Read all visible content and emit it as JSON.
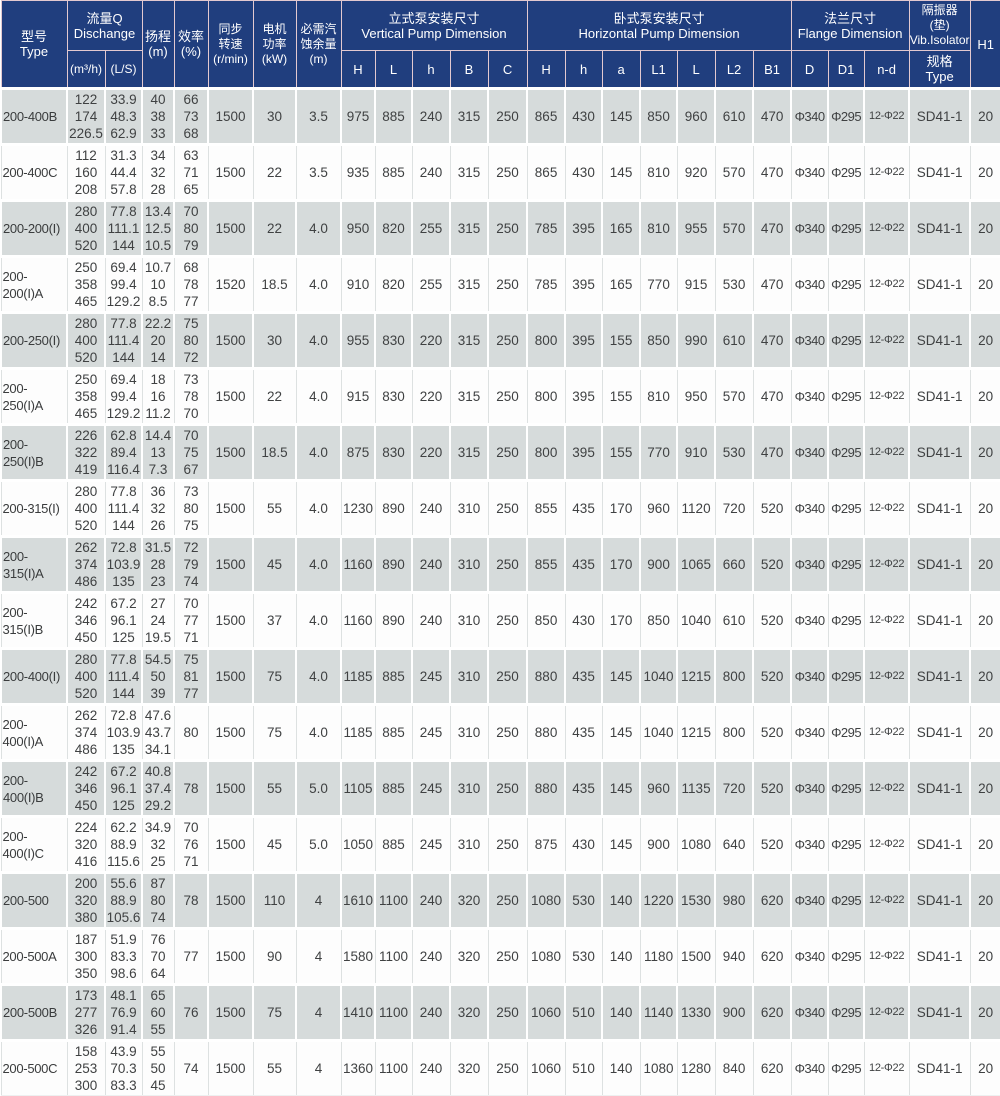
{
  "colors": {
    "header_bg": "#203e7e",
    "header_text": "#ffffff",
    "row_gray": "#d6dbdb",
    "row_white": "#fdfdfd",
    "data_text": "#3f4142"
  },
  "table": {
    "header": {
      "type": "型号\nType",
      "discharge": "流量Q\nDischange",
      "m3h": "(m³/h)",
      "ls": "(L/S)",
      "head": "扬程\n(m)",
      "eff": "效率\n(%)",
      "speed": "同步\n转速\n(r/min)",
      "power": "电机\n功率\n(kW)",
      "npsh": "必需汽\n蚀余量\n(m)",
      "vertical": "立式泵安装尺寸\nVertical Pump Dimension",
      "horizontal": "卧式泵安装尺寸\nHorizontal Pump Dimension",
      "flange": "法兰尺寸\nFlange Dimension",
      "vib": "隔振器\n(垫)\nVib.Isolator",
      "vib_sub": "规格\nType",
      "h1": "H1",
      "v_cols": [
        "H",
        "L",
        "h",
        "B",
        "C"
      ],
      "hz_cols": [
        "H",
        "h",
        "a",
        "L1",
        "L",
        "L2",
        "B1"
      ],
      "flange_cols": [
        "D",
        "D1",
        "n-d"
      ]
    },
    "rows": [
      {
        "type": "200-400B",
        "m3h": "122\n174\n226.5",
        "ls": "33.9\n48.3\n62.9",
        "head": "40\n38\n33",
        "eff": "66\n73\n68",
        "speed": "1500",
        "power": "30",
        "npsh": "3.5",
        "v": [
          "975",
          "885",
          "240",
          "315",
          "250"
        ],
        "hz": [
          "865",
          "430",
          "145",
          "850",
          "960",
          "610",
          "470"
        ],
        "flange": [
          "Φ340",
          "Φ295",
          "12-Φ22"
        ],
        "vib": "SD41-1",
        "h1": "20"
      },
      {
        "type": "200-400C",
        "m3h": "112\n160\n208",
        "ls": "31.3\n44.4\n57.8",
        "head": "34\n32\n28",
        "eff": "63\n71\n65",
        "speed": "1500",
        "power": "22",
        "npsh": "3.5",
        "v": [
          "935",
          "885",
          "240",
          "315",
          "250"
        ],
        "hz": [
          "865",
          "430",
          "145",
          "810",
          "920",
          "570",
          "470"
        ],
        "flange": [
          "Φ340",
          "Φ295",
          "12-Φ22"
        ],
        "vib": "SD41-1",
        "h1": "20"
      },
      {
        "type": "200-200(I)",
        "m3h": "280\n400\n520",
        "ls": "77.8\n111.1\n144",
        "head": "13.4\n12.5\n10.5",
        "eff": "70\n80\n79",
        "speed": "1500",
        "power": "22",
        "npsh": "4.0",
        "v": [
          "950",
          "820",
          "255",
          "315",
          "250"
        ],
        "hz": [
          "785",
          "395",
          "165",
          "810",
          "955",
          "570",
          "470"
        ],
        "flange": [
          "Φ340",
          "Φ295",
          "12-Φ22"
        ],
        "vib": "SD41-1",
        "h1": "20"
      },
      {
        "type": "200-200(I)A",
        "m3h": "250\n358\n465",
        "ls": "69.4\n99.4\n129.2",
        "head": "10.7\n10\n8.5",
        "eff": "68\n78\n77",
        "speed": "1520",
        "power": "18.5",
        "npsh": "4.0",
        "v": [
          "910",
          "820",
          "255",
          "315",
          "250"
        ],
        "hz": [
          "785",
          "395",
          "165",
          "770",
          "915",
          "530",
          "470"
        ],
        "flange": [
          "Φ340",
          "Φ295",
          "12-Φ22"
        ],
        "vib": "SD41-1",
        "h1": "20"
      },
      {
        "type": "200-250(I)",
        "m3h": "280\n400\n520",
        "ls": "77.8\n111.4\n144",
        "head": "22.2\n20\n14",
        "eff": "75\n80\n72",
        "speed": "1500",
        "power": "30",
        "npsh": "4.0",
        "v": [
          "955",
          "830",
          "220",
          "315",
          "250"
        ],
        "hz": [
          "800",
          "395",
          "155",
          "850",
          "990",
          "610",
          "470"
        ],
        "flange": [
          "Φ340",
          "Φ295",
          "12-Φ22"
        ],
        "vib": "SD41-1",
        "h1": "20"
      },
      {
        "type": "200-250(I)A",
        "m3h": "250\n358\n465",
        "ls": "69.4\n99.4\n129.2",
        "head": "18\n16\n11.2",
        "eff": "73\n78\n70",
        "speed": "1500",
        "power": "22",
        "npsh": "4.0",
        "v": [
          "915",
          "830",
          "220",
          "315",
          "250"
        ],
        "hz": [
          "800",
          "395",
          "155",
          "810",
          "950",
          "570",
          "470"
        ],
        "flange": [
          "Φ340",
          "Φ295",
          "12-Φ22"
        ],
        "vib": "SD41-1",
        "h1": "20"
      },
      {
        "type": "200-250(I)B",
        "m3h": "226\n322\n419",
        "ls": "62.8\n89.4\n116.4",
        "head": "14.4\n13\n7.3",
        "eff": "70\n75\n67",
        "speed": "1500",
        "power": "18.5",
        "npsh": "4.0",
        "v": [
          "875",
          "830",
          "220",
          "315",
          "250"
        ],
        "hz": [
          "800",
          "395",
          "155",
          "770",
          "910",
          "530",
          "470"
        ],
        "flange": [
          "Φ340",
          "Φ295",
          "12-Φ22"
        ],
        "vib": "SD41-1",
        "h1": "20"
      },
      {
        "type": "200-315(I)",
        "m3h": "280\n400\n520",
        "ls": "77.8\n111.4\n144",
        "head": "36\n32\n26",
        "eff": "73\n80\n75",
        "speed": "1500",
        "power": "55",
        "npsh": "4.0",
        "v": [
          "1230",
          "890",
          "240",
          "310",
          "250"
        ],
        "hz": [
          "855",
          "435",
          "170",
          "960",
          "1120",
          "720",
          "520"
        ],
        "flange": [
          "Φ340",
          "Φ295",
          "12-Φ22"
        ],
        "vib": "SD41-1",
        "h1": "20"
      },
      {
        "type": "200-315(I)A",
        "m3h": "262\n374\n486",
        "ls": "72.8\n103.9\n135",
        "head": "31.5\n28\n23",
        "eff": "72\n79\n74",
        "speed": "1500",
        "power": "45",
        "npsh": "4.0",
        "v": [
          "1160",
          "890",
          "240",
          "310",
          "250"
        ],
        "hz": [
          "855",
          "435",
          "170",
          "900",
          "1065",
          "660",
          "520"
        ],
        "flange": [
          "Φ340",
          "Φ295",
          "12-Φ22"
        ],
        "vib": "SD41-1",
        "h1": "20"
      },
      {
        "type": "200-315(I)B",
        "m3h": "242\n346\n450",
        "ls": "67.2\n96.1\n125",
        "head": "27\n24\n19.5",
        "eff": "70\n77\n71",
        "speed": "1500",
        "power": "37",
        "npsh": "4.0",
        "v": [
          "1160",
          "890",
          "240",
          "310",
          "250"
        ],
        "hz": [
          "850",
          "430",
          "170",
          "850",
          "1040",
          "610",
          "520"
        ],
        "flange": [
          "Φ340",
          "Φ295",
          "12-Φ22"
        ],
        "vib": "SD41-1",
        "h1": "20"
      },
      {
        "type": "200-400(I)",
        "m3h": "280\n400\n520",
        "ls": "77.8\n111.4\n144",
        "head": "54.5\n50\n39",
        "eff": "75\n81\n77",
        "speed": "1500",
        "power": "75",
        "npsh": "4.0",
        "v": [
          "1185",
          "885",
          "245",
          "310",
          "250"
        ],
        "hz": [
          "880",
          "435",
          "145",
          "1040",
          "1215",
          "800",
          "520"
        ],
        "flange": [
          "Φ340",
          "Φ295",
          "12-Φ22"
        ],
        "vib": "SD41-1",
        "h1": "20"
      },
      {
        "type": "200-400(I)A",
        "m3h": "262\n374\n486",
        "ls": "72.8\n103.9\n135",
        "head": "47.6\n43.7\n34.1",
        "eff": "80",
        "speed": "1500",
        "power": "75",
        "npsh": "4.0",
        "v": [
          "1185",
          "885",
          "245",
          "310",
          "250"
        ],
        "hz": [
          "880",
          "435",
          "145",
          "1040",
          "1215",
          "800",
          "520"
        ],
        "flange": [
          "Φ340",
          "Φ295",
          "12-Φ22"
        ],
        "vib": "SD41-1",
        "h1": "20"
      },
      {
        "type": "200-400(I)B",
        "m3h": "242\n346\n450",
        "ls": "67.2\n96.1\n125",
        "head": "40.8\n37.4\n29.2",
        "eff": "78",
        "speed": "1500",
        "power": "55",
        "npsh": "5.0",
        "v": [
          "1105",
          "885",
          "245",
          "310",
          "250"
        ],
        "hz": [
          "880",
          "435",
          "145",
          "960",
          "1135",
          "720",
          "520"
        ],
        "flange": [
          "Φ340",
          "Φ295",
          "12-Φ22"
        ],
        "vib": "SD41-1",
        "h1": "20"
      },
      {
        "type": "200-400(I)C",
        "m3h": "224\n320\n416",
        "ls": "62.2\n88.9\n115.6",
        "head": "34.9\n32\n25",
        "eff": "70\n76\n71",
        "speed": "1500",
        "power": "45",
        "npsh": "5.0",
        "v": [
          "1050",
          "885",
          "245",
          "310",
          "250"
        ],
        "hz": [
          "875",
          "430",
          "145",
          "900",
          "1080",
          "640",
          "520"
        ],
        "flange": [
          "Φ340",
          "Φ295",
          "12-Φ22"
        ],
        "vib": "SD41-1",
        "h1": "20"
      },
      {
        "type": "200-500",
        "m3h": "200\n320\n380",
        "ls": "55.6\n88.9\n105.6",
        "head": "87\n80\n74",
        "eff": "78",
        "speed": "1500",
        "power": "110",
        "npsh": "4",
        "v": [
          "1610",
          "1100",
          "240",
          "320",
          "250"
        ],
        "hz": [
          "1080",
          "530",
          "140",
          "1220",
          "1530",
          "980",
          "620"
        ],
        "flange": [
          "Φ340",
          "Φ295",
          "12-Φ22"
        ],
        "vib": "SD41-1",
        "h1": "20"
      },
      {
        "type": "200-500A",
        "m3h": "187\n300\n350",
        "ls": "51.9\n83.3\n98.6",
        "head": "76\n70\n64",
        "eff": "77",
        "speed": "1500",
        "power": "90",
        "npsh": "4",
        "v": [
          "1580",
          "1100",
          "240",
          "320",
          "250"
        ],
        "hz": [
          "1080",
          "530",
          "140",
          "1180",
          "1500",
          "940",
          "620"
        ],
        "flange": [
          "Φ340",
          "Φ295",
          "12-Φ22"
        ],
        "vib": "SD41-1",
        "h1": "20"
      },
      {
        "type": "200-500B",
        "m3h": "173\n277\n326",
        "ls": "48.1\n76.9\n91.4",
        "head": "65\n60\n55",
        "eff": "76",
        "speed": "1500",
        "power": "75",
        "npsh": "4",
        "v": [
          "1410",
          "1100",
          "240",
          "320",
          "250"
        ],
        "hz": [
          "1060",
          "510",
          "140",
          "1140",
          "1330",
          "900",
          "620"
        ],
        "flange": [
          "Φ340",
          "Φ295",
          "12-Φ22"
        ],
        "vib": "SD41-1",
        "h1": "20"
      },
      {
        "type": "200-500C",
        "m3h": "158\n253\n300",
        "ls": "43.9\n70.3\n83.3",
        "head": "55\n50\n45",
        "eff": "74",
        "speed": "1500",
        "power": "55",
        "npsh": "4",
        "v": [
          "1360",
          "1100",
          "240",
          "320",
          "250"
        ],
        "hz": [
          "1060",
          "510",
          "140",
          "1080",
          "1280",
          "840",
          "620"
        ],
        "flange": [
          "Φ340",
          "Φ295",
          "12-Φ22"
        ],
        "vib": "SD41-1",
        "h1": "20"
      }
    ]
  }
}
